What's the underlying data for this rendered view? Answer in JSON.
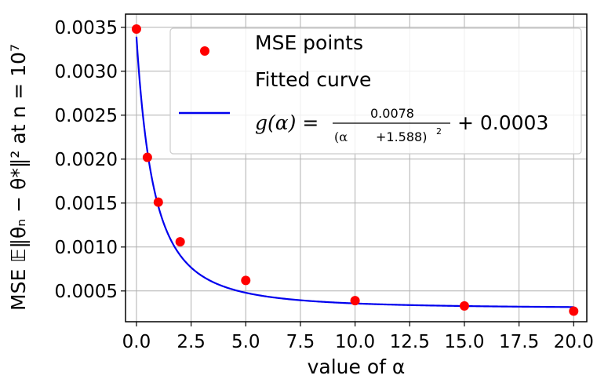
{
  "chart_data": {
    "type": "scatter",
    "title": "",
    "xlabel": "value of α",
    "ylabel": "MSE 𝔼‖θₙ − θ*‖² at n = 10⁷",
    "xlim": [
      -0.5,
      20.6
    ],
    "ylim": [
      0.00015,
      0.00365
    ],
    "grid": true,
    "x_ticks": [
      0.0,
      2.5,
      5.0,
      7.5,
      10.0,
      12.5,
      15.0,
      17.5,
      20.0
    ],
    "x_tick_labels": [
      "0.0",
      "2.5",
      "5.0",
      "7.5",
      "10.0",
      "12.5",
      "15.0",
      "17.5",
      "20.0"
    ],
    "y_ticks": [
      0.0005,
      0.001,
      0.0015,
      0.002,
      0.0025,
      0.003,
      0.0035
    ],
    "y_tick_labels": [
      "0.0005",
      "0.0010",
      "0.0015",
      "0.0020",
      "0.0025",
      "0.0030",
      "0.0035"
    ],
    "series": [
      {
        "name": "MSE points",
        "kind": "scatter",
        "color": "#ff0000",
        "x": [
          0,
          0.5,
          1,
          2,
          5,
          10,
          15,
          20
        ],
        "y": [
          0.00348,
          0.00202,
          0.00151,
          0.00106,
          0.00062,
          0.00039,
          0.00033,
          0.00027
        ]
      },
      {
        "name": "Fitted curve",
        "kind": "line",
        "color": "#0000ee",
        "formula": {
          "a": 0.0078,
          "b": 1.588,
          "c": 0.0003
        },
        "x_range": [
          0,
          20
        ]
      }
    ],
    "legend": {
      "position": "top-right",
      "entries": [
        "MSE points",
        "Fitted curve"
      ],
      "formula_label": {
        "lhs": "g(α) =",
        "numerator": "0.0078",
        "denominator_left": "(α",
        "denominator_right": "+1.588)",
        "exponent": "2",
        "tail": "+ 0.0003"
      }
    }
  }
}
